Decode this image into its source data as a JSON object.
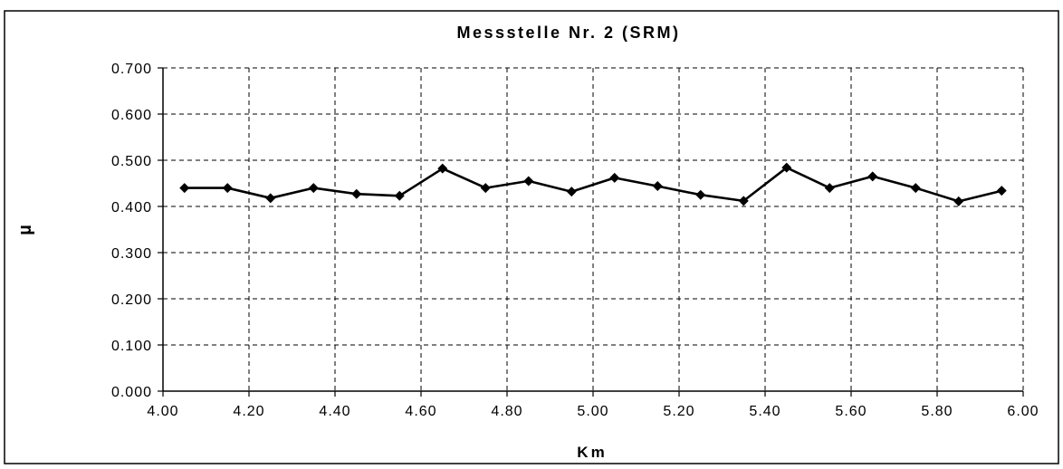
{
  "chart_data": {
    "type": "line",
    "title": "Messstelle Nr. 2 (SRM)",
    "xlabel": "Km",
    "ylabel": "µ",
    "xlim": [
      4.0,
      6.0
    ],
    "ylim": [
      0.0,
      0.7
    ],
    "x_ticks": [
      "4.00",
      "4.20",
      "4.40",
      "4.60",
      "4.80",
      "5.00",
      "5.20",
      "5.40",
      "5.60",
      "5.80",
      "6.00"
    ],
    "y_ticks": [
      "0.000",
      "0.100",
      "0.200",
      "0.300",
      "0.400",
      "0.500",
      "0.600",
      "0.700"
    ],
    "grid": true,
    "grid_style": "dashed",
    "legend": "none",
    "marker": "diamond",
    "line_color": "#000000",
    "series": [
      {
        "x": [
          4.05,
          4.15,
          4.25,
          4.35,
          4.45,
          4.55,
          4.65,
          4.75,
          4.85,
          4.95,
          5.05,
          5.15,
          5.25,
          5.35,
          5.45,
          5.55,
          5.65,
          5.75,
          5.85,
          5.95
        ],
        "values": [
          0.44,
          0.44,
          0.418,
          0.44,
          0.427,
          0.423,
          0.482,
          0.44,
          0.455,
          0.432,
          0.462,
          0.444,
          0.425,
          0.412,
          0.484,
          0.44,
          0.465,
          0.44,
          0.411,
          0.434
        ]
      }
    ]
  }
}
